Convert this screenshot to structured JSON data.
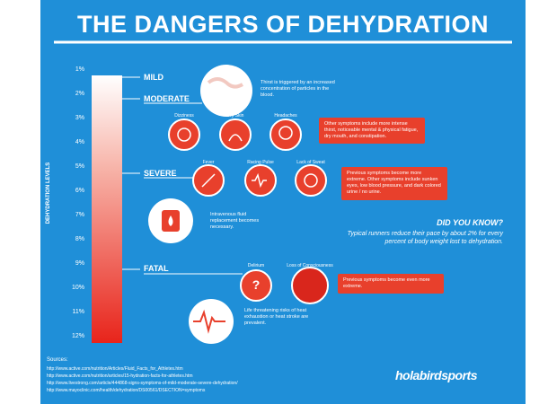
{
  "title": "THE DANGERS OF DEHYDRATION",
  "scale": {
    "label": "DEHYDRATION LEVELS",
    "levels": [
      "1%",
      "2%",
      "3%",
      "4%",
      "5%",
      "6%",
      "7%",
      "8%",
      "9%",
      "10%",
      "11%",
      "12%"
    ]
  },
  "stages": [
    {
      "name": "MILD",
      "note": "Thirst is triggered by an increased concentration of particles in the blood."
    },
    {
      "name": "MODERATE",
      "symptoms": [
        "Dizziness",
        "Dry Skin",
        "Headaches"
      ],
      "note": "Other symptoms include more intense thirst, noticeable mental & physical fatigue, dry mouth, and constipation."
    },
    {
      "name": "SEVERE",
      "symptoms": [
        "Fever",
        "Racing Pulse",
        "Lack of Sweat"
      ],
      "note": "Previous symptoms become more extreme. Other symptoms include sunken eyes, low blood pressure, and dark colored urine / no urine."
    },
    {
      "name": "FATAL",
      "symptoms": [
        "Delirium",
        "Loss of Consciousness"
      ],
      "note": "Previous symptoms become even more extreme."
    }
  ],
  "treatment": "Intravenous fluid replacement becomes necessary.",
  "fatal_risk": "Life threatening risks of heat exhaustion or heat stroke are prevalent.",
  "did_you_know": {
    "heading": "DID YOU KNOW?",
    "text": "Typical runners reduce their pace by about 2% for every percent of body weight lost to dehydration."
  },
  "sources": {
    "heading": "Sources:",
    "links": [
      "http://www.active.com/nutrition/Articles/Fluid_Facts_for_Athletes.htm",
      "http://www.active.com/nutrition/articles/15-hydration-facts-for-athletes.htm",
      "http://www.livestrong.com/article/444868-signs-symptoms-of-mild-moderate-severe-dehydration/",
      "http://www.mayoclinic.com/health/dehydration/DS00561/DSECTION=symptoms"
    ]
  },
  "brand": "holabirdsports"
}
